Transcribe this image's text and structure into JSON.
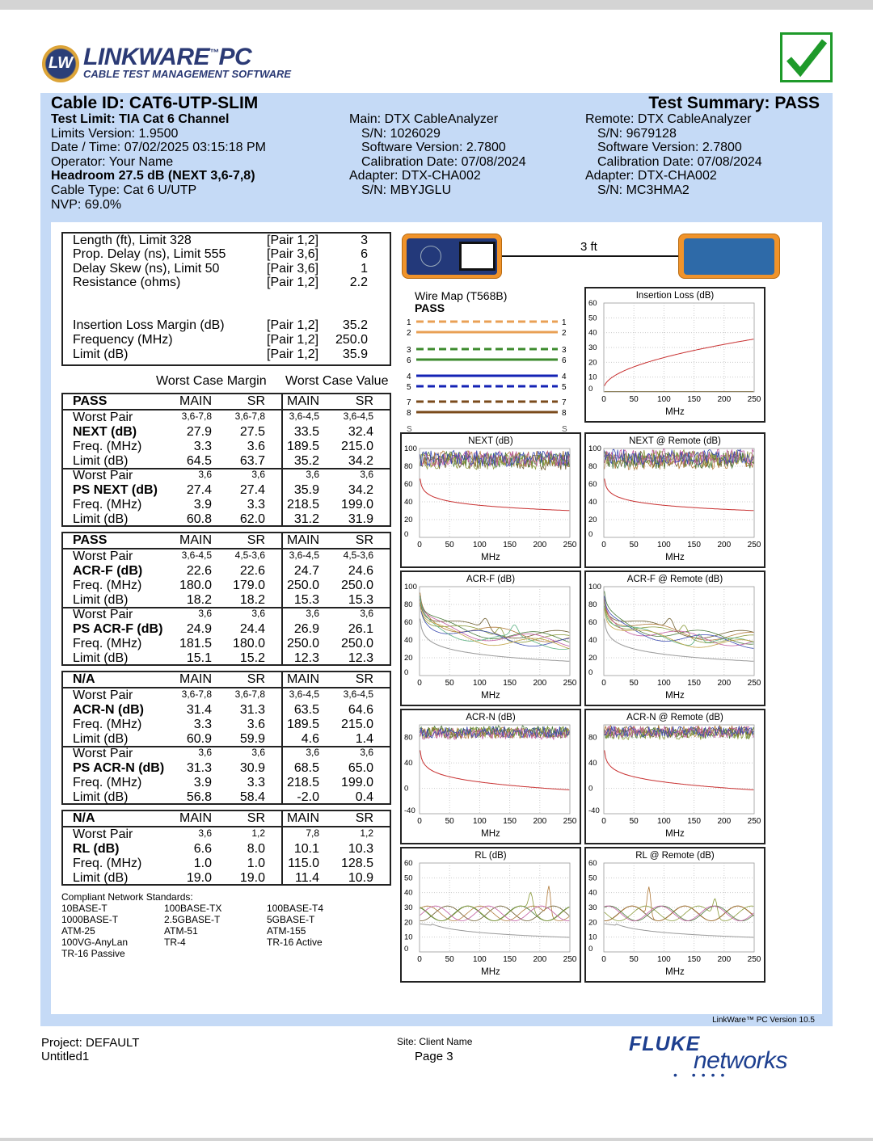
{
  "logo": {
    "badge": "LW",
    "name": "LINKWARE",
    "tm": "™",
    "pc": "PC",
    "tagline": "CABLE TEST MANAGEMENT SOFTWARE"
  },
  "status_icon": "checkmark-pass-icon",
  "colors": {
    "panel": "#c5daf6",
    "check": "#1e9a2a",
    "fluke": "#1d3f8f"
  },
  "header": {
    "cable_id": "Cable ID: CAT6-UTP-SLIM",
    "summary": "Test Summary: PASS",
    "left": [
      "Test Limit: TIA Cat 6 Channel",
      "Limits Version: 1.9500",
      "Date / Time: 07/02/2025  03:15:18 PM",
      "Operator: Your Name",
      "Headroom 27.5 dB (NEXT 3,6-7,8)",
      "Cable Type: Cat 6 U/UTP",
      "NVP: 69.0%"
    ],
    "main": [
      "Main: DTX CableAnalyzer",
      "S/N: 1026029",
      "Software Version: 2.7800",
      "Calibration Date: 07/08/2024",
      "Adapter: DTX-CHA002",
      "S/N: MBYJGLU"
    ],
    "remote": [
      "Remote: DTX CableAnalyzer",
      "S/N: 9679128",
      "Software Version: 2.7800",
      "Calibration Date: 07/08/2024",
      "Adapter: DTX-CHA002",
      "S/N: MC3HMA2"
    ]
  },
  "summary_box": {
    "rows": [
      {
        "label": "Length (ft), Limit 328",
        "pair": "[Pair 1,2]",
        "value": "3"
      },
      {
        "label": "Prop. Delay (ns), Limit 555",
        "pair": "[Pair 3,6]",
        "value": "6"
      },
      {
        "label": "Delay Skew (ns), Limit 50",
        "pair": "[Pair 3,6]",
        "value": "1"
      },
      {
        "label": "Resistance (ohms)",
        "pair": "[Pair 1,2]",
        "value": "2.2"
      }
    ],
    "il_rows": [
      {
        "label": "Insertion Loss Margin (dB)",
        "pair": "[Pair 1,2]",
        "value": "35.2"
      },
      {
        "label": "Frequency (MHz)",
        "pair": "[Pair 1,2]",
        "value": "250.0"
      },
      {
        "label": "Limit (dB)",
        "pair": "[Pair 1,2]",
        "value": "35.9"
      }
    ]
  },
  "worst_case_margin": "Worst Case Margin",
  "worst_case_value": "Worst Case Value",
  "labels": {
    "main": "MAIN",
    "sr": "SR",
    "worst_pair": "Worst Pair",
    "freq": "Freq. (MHz)",
    "limit": "Limit (dB)"
  },
  "results": [
    {
      "status": "PASS",
      "groups": [
        {
          "name": "NEXT (dB)",
          "pairs": [
            "3,6-7,8",
            "3,6-7,8",
            "3,6-4,5",
            "3,6-4,5"
          ],
          "value": [
            "27.9",
            "27.5",
            "33.5",
            "32.4"
          ],
          "freq": [
            "3.3",
            "3.6",
            "189.5",
            "215.0"
          ],
          "limit": [
            "64.5",
            "63.7",
            "35.2",
            "34.2"
          ]
        },
        {
          "name": "PS NEXT (dB)",
          "pairs": [
            "3,6",
            "3,6",
            "3,6",
            "3,6"
          ],
          "value": [
            "27.4",
            "27.4",
            "35.9",
            "34.2"
          ],
          "freq": [
            "3.9",
            "3.3",
            "218.5",
            "199.0"
          ],
          "limit": [
            "60.8",
            "62.0",
            "31.2",
            "31.9"
          ]
        }
      ]
    },
    {
      "status": "PASS",
      "groups": [
        {
          "name": "ACR-F (dB)",
          "pairs": [
            "3,6-4,5",
            "4,5-3,6",
            "3,6-4,5",
            "4,5-3,6"
          ],
          "value": [
            "22.6",
            "22.6",
            "24.7",
            "24.6"
          ],
          "freq": [
            "180.0",
            "179.0",
            "250.0",
            "250.0"
          ],
          "limit": [
            "18.2",
            "18.2",
            "15.3",
            "15.3"
          ]
        },
        {
          "name": "PS ACR-F (dB)",
          "pairs": [
            "3,6",
            "3,6",
            "3,6",
            "3,6"
          ],
          "value": [
            "24.9",
            "24.4",
            "26.9",
            "26.1"
          ],
          "freq": [
            "181.5",
            "180.0",
            "250.0",
            "250.0"
          ],
          "limit": [
            "15.1",
            "15.2",
            "12.3",
            "12.3"
          ]
        }
      ]
    },
    {
      "status": "N/A",
      "groups": [
        {
          "name": "ACR-N (dB)",
          "pairs": [
            "3,6-7,8",
            "3,6-7,8",
            "3,6-4,5",
            "3,6-4,5"
          ],
          "value": [
            "31.4",
            "31.3",
            "63.5",
            "64.6"
          ],
          "freq": [
            "3.3",
            "3.6",
            "189.5",
            "215.0"
          ],
          "limit": [
            "60.9",
            "59.9",
            "4.6",
            "1.4"
          ]
        },
        {
          "name": "PS ACR-N (dB)",
          "pairs": [
            "3,6",
            "3,6",
            "3,6",
            "3,6"
          ],
          "value": [
            "31.3",
            "30.9",
            "68.5",
            "65.0"
          ],
          "freq": [
            "3.9",
            "3.3",
            "218.5",
            "199.0"
          ],
          "limit": [
            "56.8",
            "58.4",
            "-2.0",
            "0.4"
          ]
        }
      ]
    },
    {
      "status": "N/A",
      "groups": [
        {
          "name": "RL (dB)",
          "pairs": [
            "3,6",
            "1,2",
            "7,8",
            "1,2"
          ],
          "value": [
            "6.6",
            "8.0",
            "10.1",
            "10.3"
          ],
          "freq": [
            "1.0",
            "1.0",
            "115.0",
            "128.5"
          ],
          "limit": [
            "19.0",
            "19.0",
            "11.4",
            "10.9"
          ]
        }
      ]
    }
  ],
  "standards": {
    "title": "Compliant Network Standards:",
    "items": [
      "10BASE-T",
      "100BASE-TX",
      "100BASE-T4",
      "1000BASE-T",
      "2.5GBASE-T",
      "5GBASE-T",
      "ATM-25",
      "ATM-51",
      "ATM-155",
      "100VG-AnyLan",
      "TR-4",
      "TR-16 Active",
      "TR-16 Passive"
    ]
  },
  "link": {
    "length": "3 ft"
  },
  "wire_map": {
    "title": "Wire Map (T568B)",
    "result": "PASS",
    "wires": [
      {
        "pin": "1",
        "color": "#e9a055",
        "dashed": true
      },
      {
        "pin": "2",
        "color": "#e9a055",
        "dashed": false
      },
      {
        "pin": "3",
        "color": "#3d8b2e",
        "dashed": true
      },
      {
        "pin": "6",
        "color": "#3d8b2e",
        "dashed": false
      },
      {
        "pin": "4",
        "color": "#1322b4",
        "dashed": false
      },
      {
        "pin": "5",
        "color": "#1322b4",
        "dashed": true
      },
      {
        "pin": "7",
        "color": "#7b4b1c",
        "dashed": true
      },
      {
        "pin": "8",
        "color": "#7b4b1c",
        "dashed": false
      }
    ],
    "shield": "S"
  },
  "chart_data": [
    {
      "id": "il",
      "type": "line",
      "title": "Insertion Loss (dB)",
      "xlabel": "MHz",
      "xlim": [
        0,
        250
      ],
      "ylim": [
        0,
        60
      ],
      "xticks": [
        "0",
        "50",
        "100",
        "150",
        "200",
        "250"
      ],
      "yticks": [
        "0",
        "10",
        "20",
        "30",
        "40",
        "50",
        "60"
      ],
      "grid": true
    },
    {
      "id": "next",
      "type": "line",
      "title": "NEXT (dB)",
      "xlabel": "MHz",
      "xlim": [
        0,
        250
      ],
      "ylim": [
        0,
        100
      ],
      "xticks": [
        "0",
        "50",
        "100",
        "150",
        "200",
        "250"
      ],
      "yticks": [
        "0",
        "20",
        "40",
        "60",
        "80",
        "100"
      ],
      "grid": true
    },
    {
      "id": "next_r",
      "type": "line",
      "title": "NEXT @ Remote (dB)",
      "xlabel": "MHz",
      "xlim": [
        0,
        250
      ],
      "ylim": [
        0,
        100
      ],
      "xticks": [
        "0",
        "50",
        "100",
        "150",
        "200",
        "250"
      ],
      "yticks": [
        "0",
        "20",
        "40",
        "60",
        "80",
        "100"
      ],
      "grid": true
    },
    {
      "id": "acrf",
      "type": "line",
      "title": "ACR-F (dB)",
      "xlabel": "MHz",
      "xlim": [
        0,
        250
      ],
      "ylim": [
        0,
        100
      ],
      "xticks": [
        "0",
        "50",
        "100",
        "150",
        "200",
        "250"
      ],
      "yticks": [
        "0",
        "20",
        "40",
        "60",
        "80",
        "100"
      ],
      "grid": true
    },
    {
      "id": "acrf_r",
      "type": "line",
      "title": "ACR-F @ Remote (dB)",
      "xlabel": "MHz",
      "xlim": [
        0,
        250
      ],
      "ylim": [
        0,
        100
      ],
      "xticks": [
        "0",
        "50",
        "100",
        "150",
        "200",
        "250"
      ],
      "yticks": [
        "0",
        "20",
        "40",
        "60",
        "80",
        "100"
      ],
      "grid": true
    },
    {
      "id": "acrn",
      "type": "line",
      "title": "ACR-N (dB)",
      "xlabel": "MHz",
      "xlim": [
        0,
        250
      ],
      "ylim": [
        -40,
        100
      ],
      "xticks": [
        "0",
        "50",
        "100",
        "150",
        "200",
        "250"
      ],
      "yticks": [
        "-40",
        "0",
        "40",
        "80"
      ],
      "grid": true
    },
    {
      "id": "acrn_r",
      "type": "line",
      "title": "ACR-N @ Remote (dB)",
      "xlabel": "MHz",
      "xlim": [
        0,
        250
      ],
      "ylim": [
        -40,
        100
      ],
      "xticks": [
        "0",
        "50",
        "100",
        "150",
        "200",
        "250"
      ],
      "yticks": [
        "-40",
        "0",
        "40",
        "80"
      ],
      "grid": true
    },
    {
      "id": "rl",
      "type": "line",
      "title": "RL (dB)",
      "xlabel": "MHz",
      "xlim": [
        0,
        250
      ],
      "ylim": [
        0,
        60
      ],
      "xticks": [
        "0",
        "50",
        "100",
        "150",
        "200",
        "250"
      ],
      "yticks": [
        "0",
        "10",
        "20",
        "30",
        "40",
        "50",
        "60"
      ],
      "grid": true
    },
    {
      "id": "rl_r",
      "type": "line",
      "title": "RL @ Remote (dB)",
      "xlabel": "MHz",
      "xlim": [
        0,
        250
      ],
      "ylim": [
        0,
        60
      ],
      "xticks": [
        "0",
        "50",
        "100",
        "150",
        "200",
        "250"
      ],
      "yticks": [
        "0",
        "10",
        "20",
        "30",
        "40",
        "50",
        "60"
      ],
      "grid": true
    }
  ],
  "footer": {
    "version": "LinkWare™ PC Version 10.5",
    "project": "Project: DEFAULT",
    "file": "Untitled1",
    "site": "Site: Client Name",
    "page": "Page 3",
    "fluke": "FLUKE",
    "networks": "networks"
  }
}
